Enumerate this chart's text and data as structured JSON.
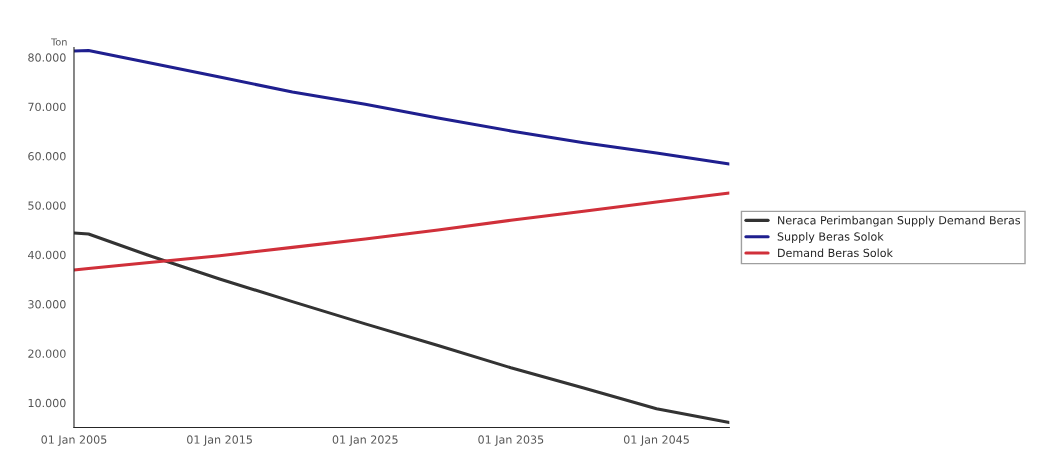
{
  "chart_data": {
    "type": "line",
    "ylabel": "Ton",
    "x": [
      "2005-01-01",
      "2006-01-01",
      "2010-01-01",
      "2015-01-01",
      "2020-01-01",
      "2025-01-01",
      "2030-01-01",
      "2035-01-01",
      "2040-01-01",
      "2045-01-01",
      "2050-01-01"
    ],
    "series": [
      {
        "name": "Neraca Perimbangan Supply Demand Beras",
        "color": "#333333",
        "values": [
          44400,
          44200,
          40000,
          35100,
          30500,
          26000,
          21600,
          17100,
          13000,
          8800,
          6000
        ]
      },
      {
        "name": "Supply Beras Solok",
        "color": "#1f1f8f",
        "values": [
          81300,
          81400,
          79000,
          76000,
          73000,
          70500,
          67700,
          65100,
          62700,
          60600,
          58400
        ]
      },
      {
        "name": "Demand Beras Solok",
        "color": "#d0303a",
        "values": [
          36900,
          37200,
          38400,
          39800,
          41500,
          43200,
          45000,
          47000,
          48800,
          50700,
          52500
        ]
      }
    ],
    "xlim": [
      "2005-01-01",
      "2050-01-01"
    ],
    "ylim": [
      5000,
      82000
    ],
    "xticks": [
      {
        "value": "2005-01-01",
        "label": "01 Jan 2005"
      },
      {
        "value": "2015-01-01",
        "label": "01 Jan 2015"
      },
      {
        "value": "2025-01-01",
        "label": "01 Jan 2025"
      },
      {
        "value": "2035-01-01",
        "label": "01 Jan 2035"
      },
      {
        "value": "2045-01-01",
        "label": "01 Jan 2045"
      }
    ],
    "yticks": [
      {
        "value": 10000,
        "label": "10.000"
      },
      {
        "value": 20000,
        "label": "20.000"
      },
      {
        "value": 30000,
        "label": "30.000"
      },
      {
        "value": 40000,
        "label": "40.000"
      },
      {
        "value": 50000,
        "label": "50.000"
      },
      {
        "value": 60000,
        "label": "60.000"
      },
      {
        "value": 70000,
        "label": "70.000"
      },
      {
        "value": 80000,
        "label": "80.000"
      }
    ],
    "grid": false,
    "legend": "right",
    "marker": "none",
    "line_style": "solid"
  }
}
